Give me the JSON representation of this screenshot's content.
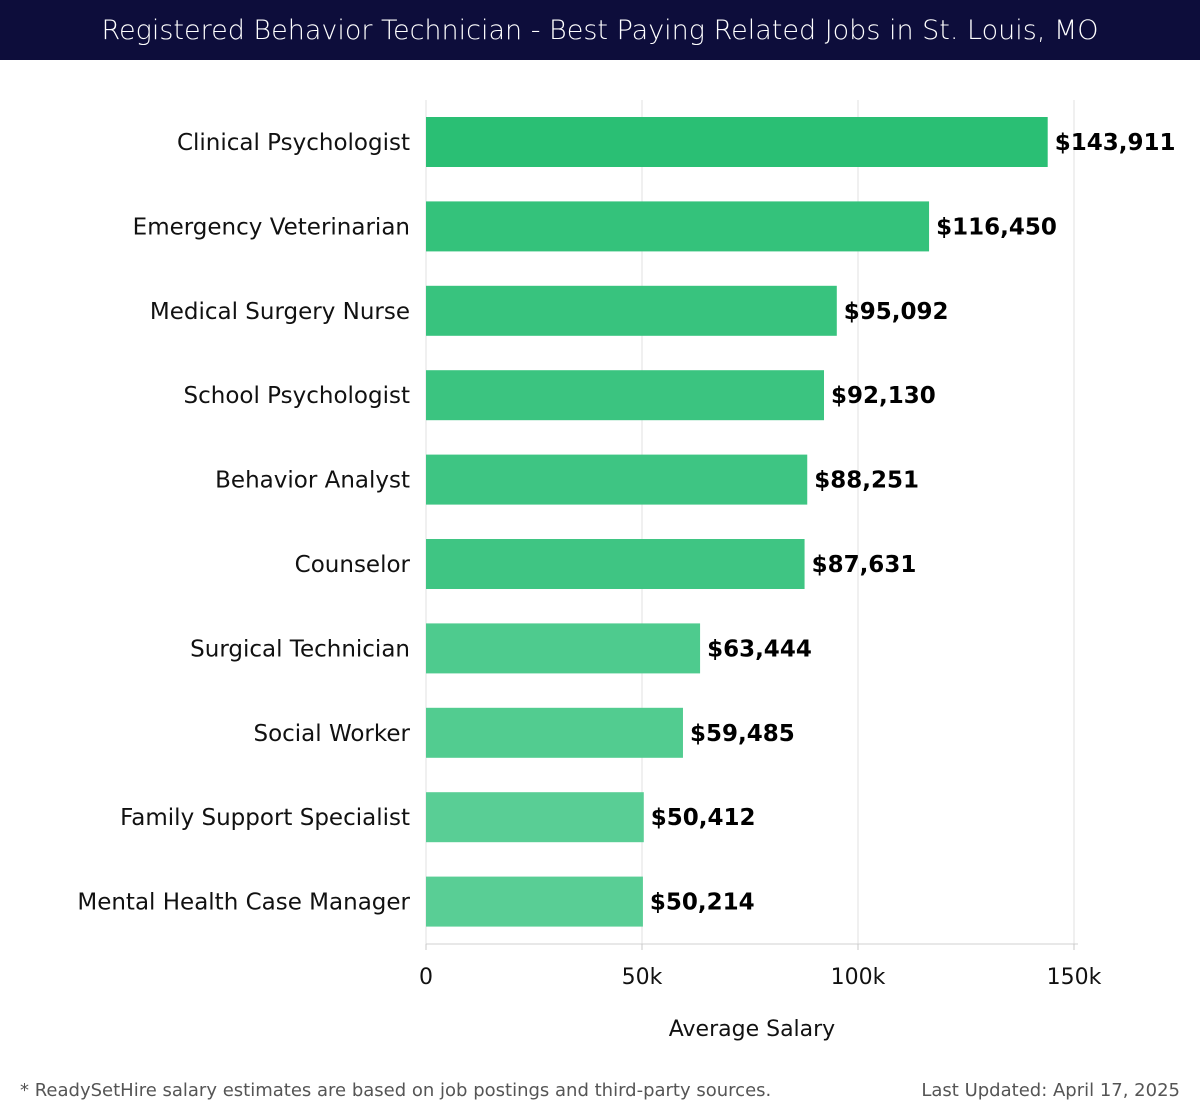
{
  "header": {
    "title": "Registered Behavior Technician - Best Paying Related Jobs in St. Louis, MO"
  },
  "chart_data": {
    "type": "bar",
    "orientation": "horizontal",
    "categories": [
      "Clinical Psychologist",
      "Emergency Veterinarian",
      "Medical Surgery Nurse",
      "School Psychologist",
      "Behavior Analyst",
      "Counselor",
      "Surgical Technician",
      "Social Worker",
      "Family Support Specialist",
      "Mental Health Case Manager"
    ],
    "values": [
      143911,
      116450,
      95092,
      92130,
      88251,
      87631,
      63444,
      59485,
      50412,
      50214
    ],
    "value_labels": [
      "$143,911",
      "$116,450",
      "$95,092",
      "$92,130",
      "$88,251",
      "$87,631",
      "$63,444",
      "$59,485",
      "$50,412",
      "$50,214"
    ],
    "bar_colors": [
      "#2abf74",
      "#34c27b",
      "#38c37e",
      "#3bc480",
      "#3ec583",
      "#3fc583",
      "#4ecb8e",
      "#52cc90",
      "#59ce95",
      "#59ce95"
    ],
    "xlabel": "Average Salary",
    "ylabel": "",
    "xlim": [
      0,
      150000
    ],
    "xticks": [
      0,
      50000,
      100000,
      150000
    ],
    "xtick_labels": [
      "0",
      "50k",
      "100k",
      "150k"
    ],
    "grid": true
  },
  "footer": {
    "note": "* ReadySetHire salary estimates are based on job postings and third-party sources.",
    "updated": "Last Updated: April 17, 2025"
  }
}
